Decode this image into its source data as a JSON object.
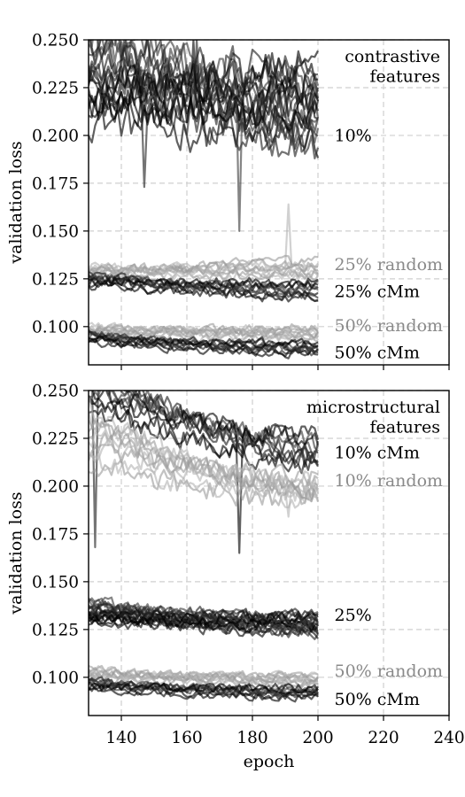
{
  "chart_data": [
    {
      "type": "line",
      "title": "",
      "xlabel": "",
      "ylabel": "validation loss",
      "xlim": [
        130,
        240
      ],
      "ylim": [
        0.08,
        0.25
      ],
      "xticks": [
        140,
        160,
        180,
        200,
        220,
        240
      ],
      "yticks": [
        0.1,
        0.125,
        0.15,
        0.175,
        0.2,
        0.225,
        0.25
      ],
      "ytick_labels": [
        "0.100",
        "0.125",
        "0.150",
        "0.175",
        "0.200",
        "0.225",
        "0.250"
      ],
      "grid": true,
      "annotation": [
        "contrastive",
        "features"
      ],
      "groups": [
        {
          "name": "10%",
          "shade": "dark",
          "count": 20,
          "start": [
            0.2,
            0.262
          ],
          "end": [
            0.19,
            0.238
          ]
        },
        {
          "name": "25% random",
          "shade": "light",
          "count": 10,
          "start": [
            0.125,
            0.132
          ],
          "end": [
            0.125,
            0.135
          ]
        },
        {
          "name": "25% cMm",
          "shade": "dark",
          "count": 10,
          "start": [
            0.121,
            0.128
          ],
          "end": [
            0.114,
            0.124
          ]
        },
        {
          "name": "50% random",
          "shade": "light",
          "count": 10,
          "start": [
            0.095,
            0.101
          ],
          "end": [
            0.093,
            0.1
          ]
        },
        {
          "name": "50% cMm",
          "shade": "dark",
          "count": 10,
          "start": [
            0.091,
            0.097
          ],
          "end": [
            0.085,
            0.092
          ]
        }
      ],
      "spikes": [
        {
          "epoch": 147,
          "value": 0.173
        },
        {
          "epoch": 149,
          "value": 0.25
        },
        {
          "epoch": 162,
          "value": 0.25
        },
        {
          "epoch": 163,
          "value": 0.25
        },
        {
          "epoch": 176,
          "value": 0.15
        },
        {
          "epoch": 191,
          "value": 0.164
        }
      ],
      "group_labels": [
        {
          "text": "10%",
          "y": 0.2,
          "shade": "dark"
        },
        {
          "text": "25% random",
          "y": 0.1325,
          "shade": "light"
        },
        {
          "text": "25% cMm",
          "y": 0.1185,
          "shade": "dark"
        },
        {
          "text": "50% random",
          "y": 0.1005,
          "shade": "light"
        },
        {
          "text": "50% cMm",
          "y": 0.0865,
          "shade": "dark"
        }
      ]
    },
    {
      "type": "line",
      "title": "",
      "xlabel": "epoch",
      "ylabel": "validation loss",
      "xlim": [
        130,
        240
      ],
      "ylim": [
        0.08,
        0.25
      ],
      "xticks": [
        140,
        160,
        180,
        200,
        220,
        240
      ],
      "xtick_labels": [
        "140",
        "160",
        "180",
        "200",
        "220",
        "240"
      ],
      "yticks": [
        0.1,
        0.125,
        0.15,
        0.175,
        0.2,
        0.225,
        0.25
      ],
      "ytick_labels": [
        "0.100",
        "0.125",
        "0.150",
        "0.175",
        "0.200",
        "0.225",
        "0.250"
      ],
      "grid": true,
      "annotation": [
        "microstructural",
        "features"
      ],
      "groups": [
        {
          "name": "10% cMm",
          "shade": "dark",
          "count": 10,
          "start": [
            0.235,
            0.27
          ],
          "end": [
            0.21,
            0.228
          ]
        },
        {
          "name": "10% random",
          "shade": "light",
          "count": 10,
          "start": [
            0.205,
            0.245
          ],
          "end": [
            0.19,
            0.205
          ]
        },
        {
          "name": "25%",
          "shade": "dark",
          "count": 20,
          "start": [
            0.127,
            0.14
          ],
          "end": [
            0.122,
            0.133
          ]
        },
        {
          "name": "50% random",
          "shade": "light",
          "count": 10,
          "start": [
            0.098,
            0.105
          ],
          "end": [
            0.096,
            0.102
          ]
        },
        {
          "name": "50% cMm",
          "shade": "dark",
          "count": 10,
          "start": [
            0.093,
            0.099
          ],
          "end": [
            0.089,
            0.095
          ]
        }
      ],
      "spikes": [
        {
          "epoch": 132,
          "value": 0.168
        },
        {
          "epoch": 148,
          "value": 0.25
        },
        {
          "epoch": 176,
          "value": 0.165
        },
        {
          "epoch": 191,
          "value": 0.184
        }
      ],
      "group_labels": [
        {
          "text": "10% cMm",
          "y": 0.2175,
          "shade": "dark"
        },
        {
          "text": "10% random",
          "y": 0.203,
          "shade": "light"
        },
        {
          "text": "25%",
          "y": 0.1325,
          "shade": "dark"
        },
        {
          "text": "50% random",
          "y": 0.1035,
          "shade": "light"
        },
        {
          "text": "50% cMm",
          "y": 0.0885,
          "shade": "dark"
        }
      ]
    }
  ],
  "colors": {
    "dark": "#1e1e1e",
    "light": "#9a9a9a",
    "grid": "#cfcfcf",
    "axis": "#000000",
    "label_dark": "#000000",
    "label_light": "#8a8a8a"
  }
}
